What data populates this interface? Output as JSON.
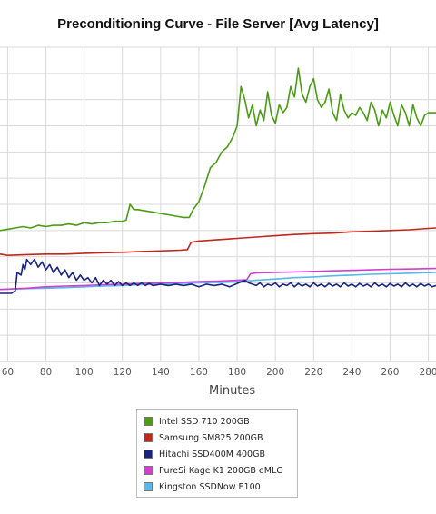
{
  "chart_data": {
    "type": "line",
    "title": "Preconditioning Curve - File Server [Avg Latency]",
    "xlabel": "Minutes",
    "ylabel": "",
    "x_ticks": [
      60,
      80,
      100,
      120,
      140,
      160,
      180,
      200,
      220,
      240,
      260,
      280
    ],
    "xlim": [
      56,
      284
    ],
    "ylim": [
      0,
      12
    ],
    "grid": true,
    "legend_position": "bottom",
    "series": [
      {
        "name": "Intel SSD 710 200GB",
        "color": "#4b9b15",
        "points": [
          [
            56,
            5.0
          ],
          [
            60,
            5.05
          ],
          [
            64,
            5.1
          ],
          [
            68,
            5.15
          ],
          [
            72,
            5.1
          ],
          [
            76,
            5.2
          ],
          [
            80,
            5.15
          ],
          [
            84,
            5.2
          ],
          [
            88,
            5.2
          ],
          [
            92,
            5.25
          ],
          [
            96,
            5.2
          ],
          [
            100,
            5.3
          ],
          [
            104,
            5.25
          ],
          [
            108,
            5.3
          ],
          [
            112,
            5.3
          ],
          [
            116,
            5.35
          ],
          [
            120,
            5.35
          ],
          [
            122,
            5.4
          ],
          [
            124,
            6.0
          ],
          [
            126,
            5.8
          ],
          [
            128,
            5.8
          ],
          [
            132,
            5.75
          ],
          [
            136,
            5.7
          ],
          [
            140,
            5.65
          ],
          [
            144,
            5.6
          ],
          [
            148,
            5.55
          ],
          [
            152,
            5.5
          ],
          [
            155,
            5.5
          ],
          [
            157,
            5.8
          ],
          [
            160,
            6.1
          ],
          [
            163,
            6.7
          ],
          [
            166,
            7.4
          ],
          [
            169,
            7.6
          ],
          [
            172,
            8.0
          ],
          [
            175,
            8.2
          ],
          [
            178,
            8.6
          ],
          [
            180,
            9.0
          ],
          [
            182,
            10.5
          ],
          [
            184,
            10.0
          ],
          [
            186,
            9.3
          ],
          [
            188,
            9.8
          ],
          [
            190,
            9.0
          ],
          [
            192,
            9.6
          ],
          [
            194,
            9.2
          ],
          [
            196,
            10.3
          ],
          [
            198,
            9.4
          ],
          [
            200,
            9.1
          ],
          [
            202,
            9.8
          ],
          [
            204,
            9.5
          ],
          [
            206,
            9.7
          ],
          [
            208,
            10.5
          ],
          [
            210,
            10.1
          ],
          [
            212,
            11.2
          ],
          [
            214,
            10.2
          ],
          [
            216,
            9.9
          ],
          [
            218,
            10.5
          ],
          [
            220,
            10.8
          ],
          [
            222,
            10.0
          ],
          [
            224,
            9.7
          ],
          [
            226,
            9.9
          ],
          [
            228,
            10.4
          ],
          [
            230,
            9.5
          ],
          [
            232,
            9.2
          ],
          [
            234,
            10.2
          ],
          [
            236,
            9.6
          ],
          [
            238,
            9.3
          ],
          [
            240,
            9.5
          ],
          [
            242,
            9.4
          ],
          [
            244,
            9.7
          ],
          [
            246,
            9.5
          ],
          [
            248,
            9.2
          ],
          [
            250,
            9.9
          ],
          [
            252,
            9.6
          ],
          [
            254,
            9.0
          ],
          [
            256,
            9.6
          ],
          [
            258,
            9.3
          ],
          [
            260,
            9.9
          ],
          [
            262,
            9.4
          ],
          [
            264,
            9.0
          ],
          [
            266,
            9.8
          ],
          [
            268,
            9.5
          ],
          [
            270,
            9.0
          ],
          [
            272,
            9.8
          ],
          [
            274,
            9.3
          ],
          [
            276,
            9.0
          ],
          [
            278,
            9.4
          ],
          [
            280,
            9.5
          ],
          [
            284,
            9.5
          ]
        ]
      },
      {
        "name": "Samsung SM825 200GB",
        "color": "#c0281f",
        "points": [
          [
            56,
            4.1
          ],
          [
            60,
            4.05
          ],
          [
            70,
            4.08
          ],
          [
            80,
            4.1
          ],
          [
            90,
            4.1
          ],
          [
            100,
            4.13
          ],
          [
            110,
            4.15
          ],
          [
            120,
            4.17
          ],
          [
            130,
            4.2
          ],
          [
            140,
            4.22
          ],
          [
            150,
            4.25
          ],
          [
            154,
            4.27
          ],
          [
            156,
            4.55
          ],
          [
            160,
            4.6
          ],
          [
            170,
            4.65
          ],
          [
            180,
            4.7
          ],
          [
            190,
            4.75
          ],
          [
            200,
            4.8
          ],
          [
            210,
            4.85
          ],
          [
            220,
            4.88
          ],
          [
            230,
            4.9
          ],
          [
            240,
            4.95
          ],
          [
            250,
            4.97
          ],
          [
            260,
            5.0
          ],
          [
            270,
            5.03
          ],
          [
            280,
            5.08
          ],
          [
            284,
            5.1
          ]
        ]
      },
      {
        "name": "Hitachi SSD400M 400GB",
        "color": "#1a2380",
        "points": [
          [
            56,
            2.6
          ],
          [
            62,
            2.6
          ],
          [
            64,
            2.7
          ],
          [
            65,
            3.4
          ],
          [
            67,
            3.3
          ],
          [
            68,
            3.7
          ],
          [
            69,
            3.5
          ],
          [
            70,
            3.9
          ],
          [
            72,
            3.7
          ],
          [
            74,
            3.9
          ],
          [
            76,
            3.6
          ],
          [
            78,
            3.8
          ],
          [
            80,
            3.5
          ],
          [
            82,
            3.7
          ],
          [
            84,
            3.4
          ],
          [
            86,
            3.6
          ],
          [
            88,
            3.3
          ],
          [
            90,
            3.5
          ],
          [
            92,
            3.2
          ],
          [
            94,
            3.4
          ],
          [
            96,
            3.1
          ],
          [
            98,
            3.3
          ],
          [
            100,
            3.1
          ],
          [
            102,
            3.2
          ],
          [
            104,
            3.0
          ],
          [
            106,
            3.2
          ],
          [
            108,
            2.9
          ],
          [
            110,
            3.1
          ],
          [
            112,
            2.95
          ],
          [
            114,
            3.1
          ],
          [
            116,
            2.9
          ],
          [
            118,
            3.05
          ],
          [
            120,
            2.9
          ],
          [
            122,
            3.0
          ],
          [
            124,
            2.9
          ],
          [
            126,
            3.0
          ],
          [
            128,
            2.9
          ],
          [
            130,
            3.0
          ],
          [
            132,
            2.9
          ],
          [
            134,
            2.98
          ],
          [
            136,
            2.9
          ],
          [
            140,
            2.95
          ],
          [
            144,
            2.9
          ],
          [
            148,
            2.95
          ],
          [
            152,
            2.9
          ],
          [
            156,
            2.95
          ],
          [
            160,
            2.85
          ],
          [
            164,
            2.95
          ],
          [
            168,
            2.9
          ],
          [
            172,
            2.95
          ],
          [
            176,
            2.85
          ],
          [
            180,
            2.98
          ],
          [
            184,
            3.1
          ],
          [
            186,
            3.0
          ],
          [
            188,
            2.95
          ],
          [
            190,
            2.9
          ],
          [
            192,
            3.0
          ],
          [
            194,
            2.85
          ],
          [
            196,
            2.95
          ],
          [
            198,
            2.9
          ],
          [
            200,
            3.0
          ],
          [
            202,
            2.85
          ],
          [
            204,
            2.95
          ],
          [
            206,
            2.9
          ],
          [
            208,
            3.0
          ],
          [
            210,
            2.85
          ],
          [
            212,
            2.98
          ],
          [
            214,
            2.88
          ],
          [
            216,
            2.95
          ],
          [
            218,
            2.85
          ],
          [
            220,
            3.0
          ],
          [
            222,
            2.88
          ],
          [
            224,
            2.95
          ],
          [
            226,
            2.85
          ],
          [
            228,
            2.98
          ],
          [
            230,
            2.88
          ],
          [
            232,
            2.95
          ],
          [
            234,
            2.85
          ],
          [
            236,
            3.0
          ],
          [
            238,
            2.88
          ],
          [
            240,
            2.95
          ],
          [
            242,
            2.85
          ],
          [
            244,
            2.98
          ],
          [
            246,
            2.88
          ],
          [
            248,
            2.95
          ],
          [
            250,
            2.85
          ],
          [
            252,
            3.0
          ],
          [
            254,
            2.88
          ],
          [
            256,
            2.95
          ],
          [
            258,
            2.85
          ],
          [
            260,
            2.98
          ],
          [
            262,
            2.88
          ],
          [
            264,
            2.95
          ],
          [
            266,
            2.85
          ],
          [
            268,
            3.0
          ],
          [
            270,
            2.88
          ],
          [
            272,
            2.95
          ],
          [
            274,
            2.85
          ],
          [
            276,
            2.98
          ],
          [
            278,
            2.88
          ],
          [
            280,
            2.95
          ],
          [
            282,
            2.85
          ],
          [
            284,
            2.9
          ]
        ]
      },
      {
        "name": "PureSi Kage K1 200GB eMLC",
        "color": "#d23fd0",
        "points": [
          [
            56,
            2.75
          ],
          [
            70,
            2.8
          ],
          [
            80,
            2.85
          ],
          [
            90,
            2.88
          ],
          [
            100,
            2.9
          ],
          [
            110,
            2.93
          ],
          [
            120,
            2.95
          ],
          [
            130,
            2.98
          ],
          [
            140,
            3.0
          ],
          [
            150,
            3.02
          ],
          [
            160,
            3.05
          ],
          [
            170,
            3.07
          ],
          [
            180,
            3.1
          ],
          [
            185,
            3.12
          ],
          [
            187,
            3.35
          ],
          [
            190,
            3.38
          ],
          [
            200,
            3.4
          ],
          [
            210,
            3.42
          ],
          [
            220,
            3.44
          ],
          [
            230,
            3.46
          ],
          [
            240,
            3.48
          ],
          [
            250,
            3.5
          ],
          [
            260,
            3.52
          ],
          [
            270,
            3.53
          ],
          [
            284,
            3.55
          ]
        ]
      },
      {
        "name": "Kingston SSDNow E100",
        "color": "#5ab8e8",
        "points": [
          [
            56,
            2.75
          ],
          [
            70,
            2.78
          ],
          [
            80,
            2.8
          ],
          [
            90,
            2.82
          ],
          [
            100,
            2.85
          ],
          [
            110,
            2.88
          ],
          [
            120,
            2.9
          ],
          [
            130,
            2.93
          ],
          [
            140,
            2.95
          ],
          [
            150,
            2.98
          ],
          [
            160,
            3.0
          ],
          [
            170,
            3.02
          ],
          [
            180,
            3.05
          ],
          [
            190,
            3.1
          ],
          [
            200,
            3.15
          ],
          [
            210,
            3.2
          ],
          [
            220,
            3.23
          ],
          [
            230,
            3.27
          ],
          [
            240,
            3.3
          ],
          [
            250,
            3.33
          ],
          [
            260,
            3.35
          ],
          [
            270,
            3.37
          ],
          [
            284,
            3.4
          ]
        ]
      }
    ]
  }
}
